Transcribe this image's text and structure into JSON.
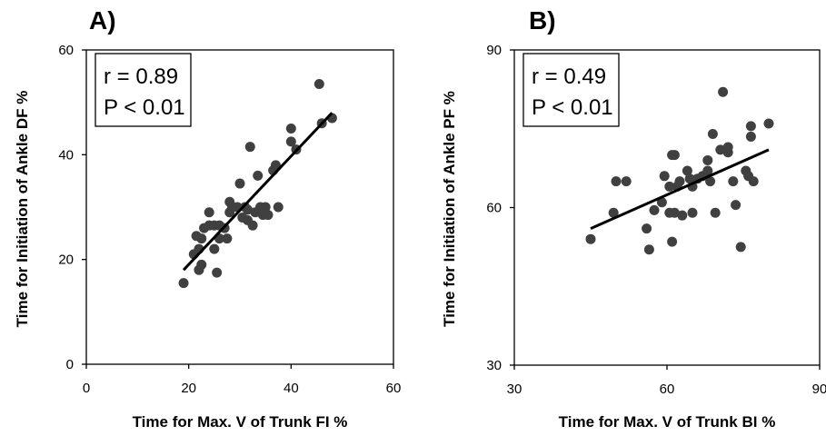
{
  "chart_data": [
    {
      "type": "scatter",
      "panel_label": "A)",
      "xlabel": "Time for Max. V of Trunk FI %",
      "ylabel": "Time for  Initiation of Ankle DF %",
      "xlim": [
        0,
        60
      ],
      "ylim": [
        0,
        60
      ],
      "xticks": [
        0,
        20,
        40,
        60
      ],
      "yticks": [
        0,
        20,
        40,
        60
      ],
      "grid": false,
      "annotation": [
        "r = 0.89",
        "P < 0.01"
      ],
      "marker_color": "#404040",
      "trendline": {
        "x": [
          19,
          48
        ],
        "y": [
          18,
          48
        ]
      },
      "points": [
        [
          19,
          15.5
        ],
        [
          21,
          21
        ],
        [
          21.5,
          24.5
        ],
        [
          22,
          18
        ],
        [
          22,
          22
        ],
        [
          22.5,
          19
        ],
        [
          22.5,
          24
        ],
        [
          23,
          26
        ],
        [
          24,
          26.5
        ],
        [
          24,
          29
        ],
        [
          25,
          22
        ],
        [
          25,
          26.5
        ],
        [
          25.5,
          17.5
        ],
        [
          26,
          24
        ],
        [
          26,
          26.5
        ],
        [
          27,
          26
        ],
        [
          27.5,
          24
        ],
        [
          28,
          31
        ],
        [
          28,
          29
        ],
        [
          28.5,
          30
        ],
        [
          29.5,
          30
        ],
        [
          30,
          34.5
        ],
        [
          30.5,
          28
        ],
        [
          31,
          30
        ],
        [
          31.5,
          29.5
        ],
        [
          31.5,
          27.5
        ],
        [
          32,
          41.5
        ],
        [
          32.5,
          26.5
        ],
        [
          33,
          29
        ],
        [
          33.5,
          36
        ],
        [
          34,
          30
        ],
        [
          34.5,
          28.5
        ],
        [
          35,
          30
        ],
        [
          35.5,
          28.5
        ],
        [
          36.5,
          37
        ],
        [
          37,
          38
        ],
        [
          37.5,
          30
        ],
        [
          40,
          42.5
        ],
        [
          40,
          45
        ],
        [
          41,
          41
        ],
        [
          45.5,
          53.5
        ],
        [
          46,
          46
        ],
        [
          48,
          47
        ]
      ]
    },
    {
      "type": "scatter",
      "panel_label": "B)",
      "xlabel": "Time for Max. V of Trunk BI %",
      "ylabel": "Time for  Initiation of Ankle PF %",
      "xlim": [
        30,
        90
      ],
      "ylim": [
        30,
        90
      ],
      "xticks": [
        30,
        60,
        90
      ],
      "yticks": [
        30,
        60,
        90
      ],
      "grid": false,
      "annotation": [
        "r = 0.49",
        "P < 0.01"
      ],
      "marker_color": "#404040",
      "trendline": {
        "x": [
          45,
          80
        ],
        "y": [
          56,
          71
        ]
      },
      "points": [
        [
          45,
          54
        ],
        [
          49.5,
          59
        ],
        [
          50,
          65
        ],
        [
          52,
          65
        ],
        [
          56,
          56
        ],
        [
          56.5,
          52
        ],
        [
          57.5,
          59.5
        ],
        [
          59,
          61
        ],
        [
          59.5,
          66
        ],
        [
          60.5,
          64
        ],
        [
          60.5,
          59
        ],
        [
          61,
          70
        ],
        [
          61,
          53.5
        ],
        [
          61.5,
          70
        ],
        [
          61.5,
          59
        ],
        [
          62,
          64
        ],
        [
          62.5,
          65
        ],
        [
          63,
          58.5
        ],
        [
          64,
          67
        ],
        [
          64.5,
          65.5
        ],
        [
          65,
          59
        ],
        [
          65,
          64
        ],
        [
          66,
          65.5
        ],
        [
          67,
          66
        ],
        [
          68,
          69
        ],
        [
          68,
          67
        ],
        [
          68.5,
          65
        ],
        [
          69,
          74
        ],
        [
          69.5,
          59
        ],
        [
          70.5,
          71
        ],
        [
          71,
          82
        ],
        [
          72,
          71.5
        ],
        [
          72,
          70.5
        ],
        [
          73,
          65
        ],
        [
          73.5,
          60.5
        ],
        [
          74.5,
          52.5
        ],
        [
          75.5,
          67
        ],
        [
          76,
          66
        ],
        [
          76.5,
          73.5
        ],
        [
          76.5,
          75.5
        ],
        [
          77,
          65
        ],
        [
          80,
          76
        ]
      ]
    }
  ]
}
